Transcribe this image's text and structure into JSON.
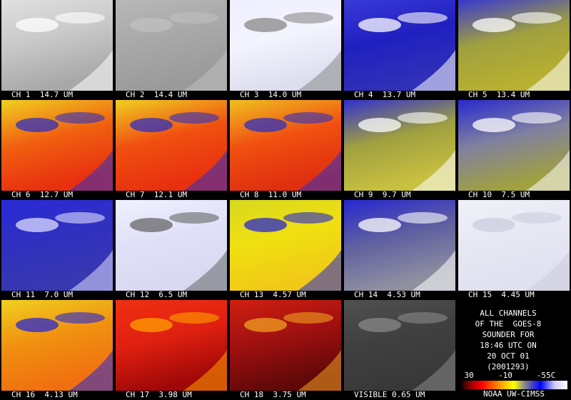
{
  "panels": [
    {
      "label": "CH 1  14.7 UM"
    },
    {
      "label": "CH 2  14.4 UM"
    },
    {
      "label": "CH 3  14.0 UM"
    },
    {
      "label": "CH 4  13.7 UM"
    },
    {
      "label": "CH 5  13.4 UM"
    },
    {
      "label": "CH 6  12.7 UM"
    },
    {
      "label": "CH 7  12.1 UM"
    },
    {
      "label": "CH 8  11.0 UM"
    },
    {
      "label": "CH 9  9.7 UM"
    },
    {
      "label": "CH 10  7.5 UM"
    },
    {
      "label": "CH 11  7.0 UM"
    },
    {
      "label": "CH 12  6.5 UM"
    },
    {
      "label": "CH 13  4.57 UM"
    },
    {
      "label": "CH 14  4.53 UM"
    },
    {
      "label": "CH 15  4.45 UM"
    },
    {
      "label": "CH 16  4.13 UM"
    },
    {
      "label": "CH 17  3.98 UM"
    },
    {
      "label": "CH 18  3.75 UM"
    },
    {
      "label": "VISIBLE 0.65 UM"
    }
  ],
  "info": {
    "lines": [
      "ALL CHANNELS",
      "OF THE  GOES-8",
      "SOUNDER FOR",
      "18:46 UTC ON",
      "20 OCT 01",
      "(2001293)"
    ]
  },
  "legend": {
    "labels": [
      "30",
      "-10",
      "-55C"
    ],
    "credit": "NOAA UW-CIMSS"
  }
}
